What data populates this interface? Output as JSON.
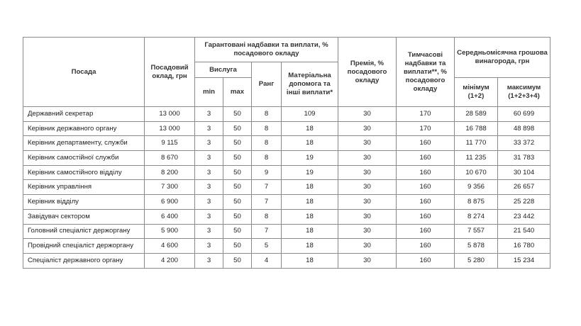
{
  "headers": {
    "position": "Посада",
    "salary": "Посадовий оклад, грн",
    "guaranteed": "Гарантовані надбавки та виплати, % посадового окладу",
    "seniority": "Вислуга",
    "min": "min",
    "max": "max",
    "rank": "Ранг",
    "material": "Матеріальна допомога та інші виплати*",
    "bonus": "Премія, % посадового окладу",
    "temporary": "Тимчасові надбавки та виплати**, % посадового окладу",
    "average": "Середньомісячна грошова винагорода, грн",
    "avg_min": "мінімум (1+2)",
    "avg_max": "максимум (1+2+3+4)"
  },
  "rows": [
    [
      "Державний секретар",
      "13 000",
      "3",
      "50",
      "8",
      "109",
      "30",
      "170",
      "28 589",
      "60 699"
    ],
    [
      "Керівник державного органу",
      "13 000",
      "3",
      "50",
      "8",
      "18",
      "30",
      "170",
      "16 788",
      "48 898"
    ],
    [
      "Керівник департаменту, служби",
      "9 115",
      "3",
      "50",
      "8",
      "18",
      "30",
      "160",
      "11 770",
      "33 372"
    ],
    [
      "Керівник самостійної служби",
      "8 670",
      "3",
      "50",
      "8",
      "19",
      "30",
      "160",
      "11 235",
      "31 783"
    ],
    [
      "Керівник самостійного відділу",
      "8 200",
      "3",
      "50",
      "9",
      "19",
      "30",
      "160",
      "10 670",
      "30 104"
    ],
    [
      "Керівник управління",
      "7 300",
      "3",
      "50",
      "7",
      "18",
      "30",
      "160",
      "9 356",
      "26 657"
    ],
    [
      "Керівник відділу",
      "6 900",
      "3",
      "50",
      "7",
      "18",
      "30",
      "160",
      "8 875",
      "25 228"
    ],
    [
      "Завідувач сектором",
      "6 400",
      "3",
      "50",
      "8",
      "18",
      "30",
      "160",
      "8 274",
      "23 442"
    ],
    [
      "Головний спеціаліст держоргану",
      "5 900",
      "3",
      "50",
      "7",
      "18",
      "30",
      "160",
      "7 557",
      "21 540"
    ],
    [
      "Провідний спеціаліст держоргану",
      "4 600",
      "3",
      "50",
      "5",
      "18",
      "30",
      "160",
      "5 878",
      "16 780"
    ],
    [
      "Спеціаліст державного органу",
      "4 200",
      "3",
      "50",
      "4",
      "18",
      "30",
      "160",
      "5 280",
      "15 234"
    ]
  ]
}
